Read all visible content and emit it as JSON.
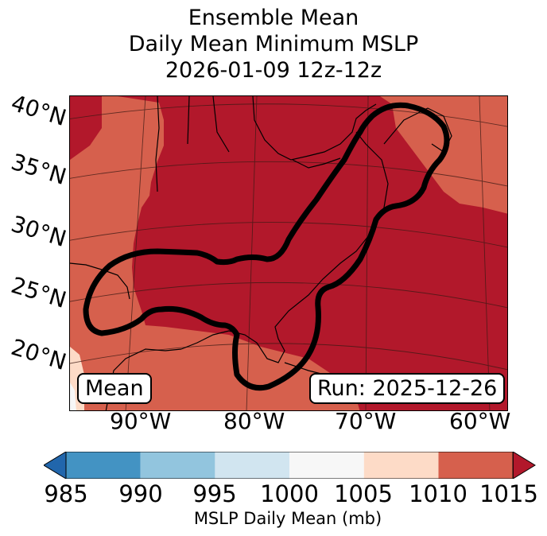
{
  "title": {
    "line1": "Ensemble Mean",
    "line2": "Daily Mean Minimum MSLP",
    "line3": "2026-01-09 12z-12z"
  },
  "map": {
    "latitude_labels": [
      "40°N",
      "35°N",
      "30°N",
      "25°N",
      "20°N"
    ],
    "longitude_labels": [
      "90°W",
      "80°W",
      "70°W",
      "60°W"
    ],
    "left_box_text": "Mean",
    "right_box_text": "Run: 2025-12-26",
    "field_colors": {
      "bin_1010_1015": "#b2182b",
      "bin_1005_1010": "#d6604d",
      "bin_1000_1005": "#fddbc7",
      "bin_995_1000": "#f7f7f7"
    },
    "contour_color": "#000000"
  },
  "colorbar": {
    "ticks": [
      "985",
      "990",
      "995",
      "1000",
      "1005",
      "1010",
      "1015"
    ],
    "label": "MSLP Daily Mean (mb)",
    "colors": [
      "#2166ac",
      "#4393c3",
      "#92c5de",
      "#d1e5f0",
      "#f7f7f7",
      "#fddbc7",
      "#d6604d",
      "#b2182b"
    ]
  }
}
